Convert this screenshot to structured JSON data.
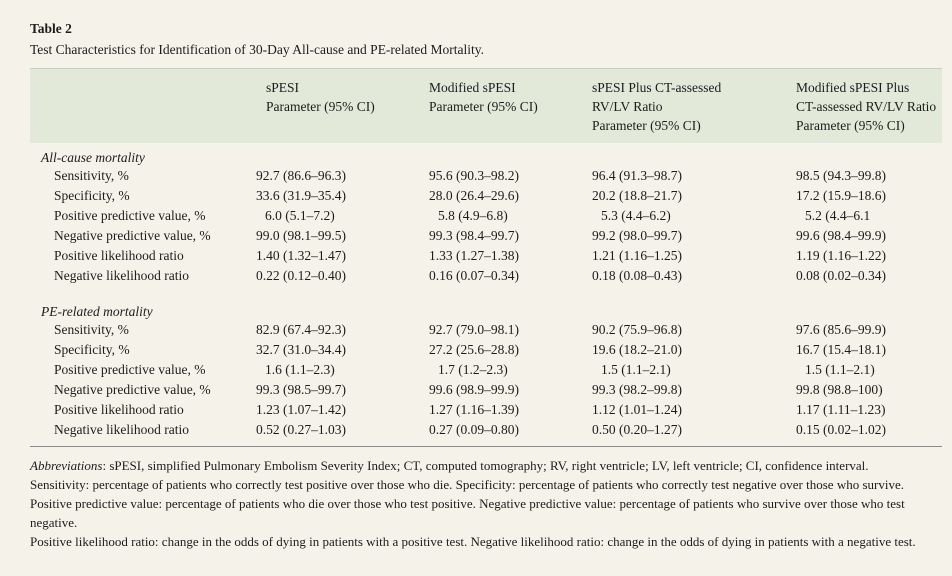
{
  "table_label": "Table 2",
  "caption": "Test Characteristics for Identification of 30-Day All-cause and PE-related Mortality.",
  "columns": [
    "sPESI\nParameter (95% CI)",
    "Modified sPESI\nParameter (95% CI)",
    "sPESI Plus CT-assessed\nRV/LV Ratio\nParameter (95% CI)",
    "Modified sPESI Plus\nCT-assessed RV/LV Ratio\nParameter (95% CI)"
  ],
  "sections": [
    {
      "title": "All-cause mortality",
      "rows": [
        {
          "label": "Sensitivity, %",
          "values": [
            "92.7 (86.6–96.3)",
            "95.6 (90.3–98.2)",
            "96.4 (91.3–98.7)",
            "98.5 (94.3–99.8)"
          ]
        },
        {
          "label": "Specificity, %",
          "values": [
            "33.6 (31.9–35.4)",
            "28.0 (26.4–29.6)",
            "20.2 (18.8–21.7)",
            "17.2 (15.9–18.6)"
          ]
        },
        {
          "label": "Positive predictive value, %",
          "values": [
            "6.0 (5.1–7.2)",
            "5.8 (4.9–6.8)",
            "5.3 (4.4–6.2)",
            "5.2 (4.4–6.1"
          ]
        },
        {
          "label": "Negative predictive value, %",
          "values": [
            "99.0 (98.1–99.5)",
            "99.3 (98.4–99.7)",
            "99.2 (98.0–99.7)",
            "99.6 (98.4–99.9)"
          ]
        },
        {
          "label": "Positive likelihood ratio",
          "values": [
            "1.40 (1.32–1.47)",
            "1.33 (1.27–1.38)",
            "1.21 (1.16–1.25)",
            "1.19 (1.16–1.22)"
          ]
        },
        {
          "label": "Negative likelihood ratio",
          "values": [
            "0.22 (0.12–0.40)",
            "0.16 (0.07–0.34)",
            "0.18 (0.08–0.43)",
            "0.08 (0.02–0.34)"
          ]
        }
      ]
    },
    {
      "title": "PE-related mortality",
      "rows": [
        {
          "label": "Sensitivity, %",
          "values": [
            "82.9 (67.4–92.3)",
            "92.7 (79.0–98.1)",
            "90.2 (75.9–96.8)",
            "97.6 (85.6–99.9)"
          ]
        },
        {
          "label": "Specificity, %",
          "values": [
            "32.7 (31.0–34.4)",
            "27.2 (25.6–28.8)",
            "19.6 (18.2–21.0)",
            "16.7 (15.4–18.1)"
          ]
        },
        {
          "label": "Positive predictive value, %",
          "values": [
            "1.6 (1.1–2.3)",
            "1.7 (1.2–2.3)",
            "1.5 (1.1–2.1)",
            "1.5 (1.1–2.1)"
          ]
        },
        {
          "label": "Negative predictive value, %",
          "values": [
            "99.3 (98.5–99.7)",
            "99.6 (98.9–99.9)",
            "99.3 (98.2–99.8)",
            "99.8 (98.8–100)"
          ]
        },
        {
          "label": "Positive likelihood ratio",
          "values": [
            "1.23 (1.07–1.42)",
            "1.27 (1.16–1.39)",
            "1.12 (1.01–1.24)",
            "1.17 (1.11–1.23)"
          ]
        },
        {
          "label": "Negative likelihood ratio",
          "values": [
            "0.52 (0.27–1.03)",
            "0.27 (0.09–0.80)",
            "0.50 (0.20–1.27)",
            "0.15 (0.02–1.02)"
          ]
        }
      ]
    }
  ],
  "footnotes": {
    "abbrev_label": "Abbreviations",
    "abbrev_text": ": sPESI, simplified Pulmonary Embolism Severity Index; CT, computed tomography; RV, right ventricle; LV, left ventricle; CI, confidence interval.",
    "sensitivity_note": "Sensitivity: percentage of patients who correctly test positive over those who die. Specificity: percentage of patients who correctly test negative over those who survive.",
    "ppv_note": "Positive predictive value: percentage of patients who die over those who test positive. Negative predictive value: percentage of patients who survive over those who test negative.",
    "lr_note": "Positive likelihood ratio: change in the odds of dying in patients with a positive test. Negative likelihood ratio: change in the odds of dying in patients with a negative test."
  }
}
